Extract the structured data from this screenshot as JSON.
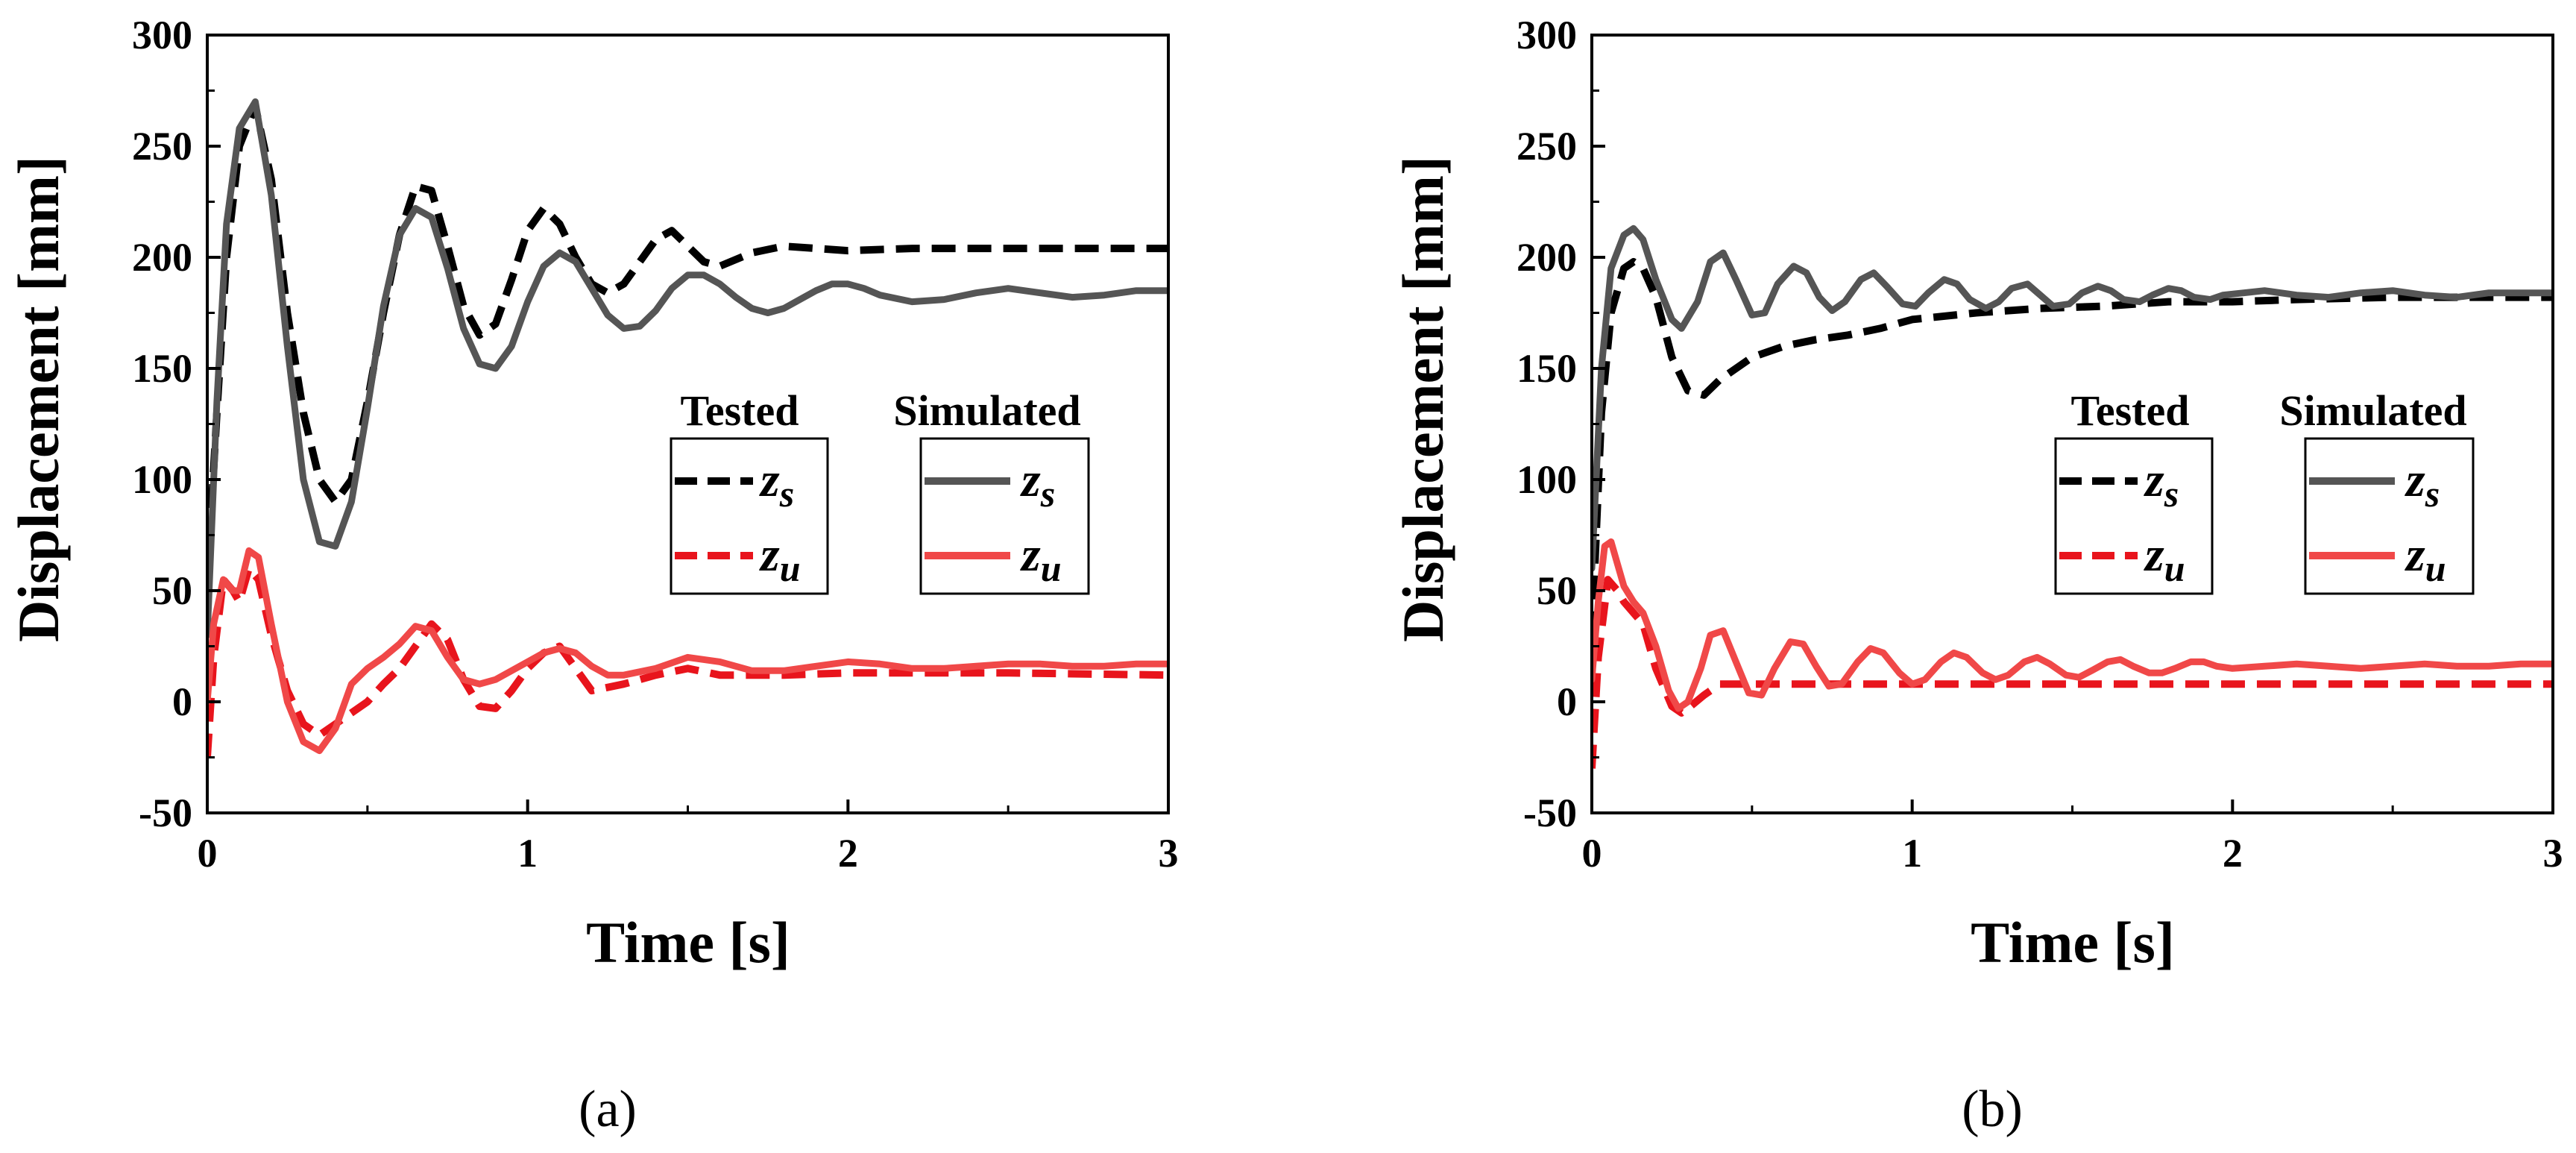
{
  "chart_data": [
    {
      "type": "line",
      "caption": "(a)",
      "xlabel": "Time [s]",
      "ylabel": "Displacement [mm]",
      "xlim": [
        0,
        3
      ],
      "ylim": [
        -50,
        300
      ],
      "xticks": [
        0,
        1,
        2,
        3
      ],
      "yticks": [
        -50,
        0,
        50,
        100,
        150,
        200,
        250,
        300
      ],
      "legend": {
        "placement": "center-right",
        "groups": [
          {
            "title": "Tested",
            "entries": [
              {
                "symbol": "z",
                "sub": "s"
              },
              {
                "symbol": "z",
                "sub": "u"
              }
            ]
          },
          {
            "title": "Simulated",
            "entries": [
              {
                "symbol": "z",
                "sub": "s"
              },
              {
                "symbol": "z",
                "sub": "u"
              }
            ]
          }
        ]
      },
      "series": [
        {
          "group": "Tested",
          "variable": "zs",
          "color": "#000000",
          "dash": true,
          "x": [
            0,
            0.03,
            0.06,
            0.1,
            0.15,
            0.2,
            0.25,
            0.3,
            0.35,
            0.4,
            0.45,
            0.5,
            0.55,
            0.6,
            0.65,
            0.7,
            0.75,
            0.8,
            0.85,
            0.9,
            0.95,
            1.0,
            1.05,
            1.1,
            1.15,
            1.2,
            1.25,
            1.3,
            1.35,
            1.4,
            1.45,
            1.5,
            1.55,
            1.6,
            1.7,
            1.8,
            1.9,
            2.0,
            2.2,
            2.5,
            2.8,
            3.0
          ],
          "y": [
            55,
            130,
            200,
            250,
            268,
            235,
            175,
            130,
            100,
            90,
            100,
            135,
            175,
            210,
            232,
            230,
            205,
            178,
            165,
            170,
            190,
            212,
            222,
            215,
            200,
            188,
            184,
            188,
            198,
            208,
            212,
            205,
            198,
            196,
            202,
            205,
            204,
            203,
            204,
            204,
            204,
            204
          ]
        },
        {
          "group": "Tested",
          "variable": "zu",
          "color": "#e8141c",
          "dash": true,
          "x": [
            0,
            0.02,
            0.05,
            0.08,
            0.1,
            0.13,
            0.16,
            0.2,
            0.25,
            0.3,
            0.35,
            0.4,
            0.45,
            0.5,
            0.55,
            0.6,
            0.65,
            0.7,
            0.75,
            0.8,
            0.85,
            0.9,
            0.95,
            1.0,
            1.05,
            1.1,
            1.15,
            1.2,
            1.3,
            1.4,
            1.5,
            1.6,
            1.8,
            2.0,
            2.5,
            3.0
          ],
          "y": [
            -25,
            20,
            55,
            50,
            45,
            60,
            55,
            30,
            5,
            -10,
            -15,
            -10,
            -5,
            0,
            8,
            15,
            25,
            35,
            28,
            10,
            -2,
            -3,
            5,
            15,
            22,
            25,
            15,
            5,
            8,
            12,
            15,
            12,
            12,
            13,
            13,
            12
          ]
        },
        {
          "group": "Simulated",
          "variable": "zs",
          "color": "#555555",
          "dash": false,
          "x": [
            0,
            0.03,
            0.06,
            0.1,
            0.15,
            0.2,
            0.25,
            0.3,
            0.35,
            0.4,
            0.45,
            0.5,
            0.55,
            0.6,
            0.65,
            0.7,
            0.75,
            0.8,
            0.85,
            0.9,
            0.95,
            1.0,
            1.05,
            1.1,
            1.15,
            1.2,
            1.25,
            1.3,
            1.35,
            1.4,
            1.45,
            1.5,
            1.55,
            1.6,
            1.65,
            1.7,
            1.75,
            1.8,
            1.85,
            1.9,
            1.95,
            2.0,
            2.05,
            2.1,
            2.2,
            2.3,
            2.4,
            2.5,
            2.6,
            2.7,
            2.8,
            2.9,
            3.0
          ],
          "y": [
            30,
            135,
            215,
            258,
            270,
            228,
            160,
            100,
            72,
            70,
            90,
            132,
            178,
            210,
            222,
            218,
            195,
            168,
            152,
            150,
            160,
            180,
            196,
            202,
            198,
            186,
            174,
            168,
            169,
            176,
            186,
            192,
            192,
            188,
            182,
            177,
            175,
            177,
            181,
            185,
            188,
            188,
            186,
            183,
            180,
            181,
            184,
            186,
            184,
            182,
            183,
            185,
            185
          ]
        },
        {
          "group": "Simulated",
          "variable": "zu",
          "color": "#f04848",
          "dash": false,
          "x": [
            0,
            0.02,
            0.05,
            0.08,
            0.1,
            0.13,
            0.16,
            0.2,
            0.25,
            0.3,
            0.35,
            0.4,
            0.45,
            0.5,
            0.55,
            0.6,
            0.65,
            0.7,
            0.75,
            0.8,
            0.85,
            0.9,
            0.95,
            1.0,
            1.05,
            1.1,
            1.15,
            1.2,
            1.25,
            1.3,
            1.4,
            1.5,
            1.6,
            1.7,
            1.8,
            1.9,
            2.0,
            2.1,
            2.2,
            2.3,
            2.4,
            2.5,
            2.6,
            2.7,
            2.8,
            2.9,
            3.0
          ],
          "y": [
            0,
            35,
            55,
            50,
            50,
            68,
            65,
            35,
            0,
            -18,
            -22,
            -12,
            8,
            15,
            20,
            26,
            34,
            32,
            20,
            10,
            8,
            10,
            14,
            18,
            22,
            24,
            22,
            16,
            12,
            12,
            15,
            20,
            18,
            14,
            14,
            16,
            18,
            17,
            15,
            15,
            16,
            17,
            17,
            16,
            16,
            17,
            17
          ]
        }
      ]
    },
    {
      "type": "line",
      "caption": "(b)",
      "xlabel": "Time [s]",
      "ylabel": "Displacement [mm]",
      "xlim": [
        0,
        3
      ],
      "ylim": [
        -50,
        300
      ],
      "xticks": [
        0,
        1,
        2,
        3
      ],
      "yticks": [
        -50,
        0,
        50,
        100,
        150,
        200,
        250,
        300
      ],
      "legend": {
        "placement": "center-right",
        "groups": [
          {
            "title": "Tested",
            "entries": [
              {
                "symbol": "z",
                "sub": "s"
              },
              {
                "symbol": "z",
                "sub": "u"
              }
            ]
          },
          {
            "title": "Simulated",
            "entries": [
              {
                "symbol": "z",
                "sub": "s"
              },
              {
                "symbol": "z",
                "sub": "u"
              }
            ]
          }
        ]
      },
      "series": [
        {
          "group": "Tested",
          "variable": "zs",
          "color": "#000000",
          "dash": true,
          "x": [
            0,
            0.03,
            0.06,
            0.1,
            0.13,
            0.16,
            0.2,
            0.25,
            0.3,
            0.35,
            0.4,
            0.5,
            0.6,
            0.7,
            0.8,
            0.9,
            1.0,
            1.2,
            1.4,
            1.6,
            1.8,
            2.0,
            2.2,
            2.5,
            2.8,
            3.0
          ],
          "y": [
            30,
            130,
            175,
            195,
            198,
            195,
            182,
            155,
            140,
            138,
            145,
            155,
            160,
            163,
            165,
            168,
            172,
            175,
            177,
            178,
            180,
            180,
            181,
            182,
            182,
            182
          ]
        },
        {
          "group": "Tested",
          "variable": "zu",
          "color": "#e8141c",
          "dash": true,
          "x": [
            0,
            0.02,
            0.05,
            0.08,
            0.1,
            0.13,
            0.16,
            0.2,
            0.25,
            0.28,
            0.3,
            0.35,
            0.4,
            0.5,
            0.6,
            0.8,
            1.0,
            1.2,
            1.5,
            2.0,
            2.5,
            3.0
          ],
          "y": [
            -30,
            20,
            55,
            50,
            45,
            40,
            35,
            15,
            -2,
            -5,
            -3,
            3,
            8,
            8,
            8,
            8,
            8,
            8,
            8,
            8,
            8,
            8
          ]
        },
        {
          "group": "Simulated",
          "variable": "zs",
          "color": "#555555",
          "dash": false,
          "x": [
            0,
            0.03,
            0.06,
            0.1,
            0.13,
            0.16,
            0.2,
            0.25,
            0.28,
            0.33,
            0.37,
            0.41,
            0.45,
            0.5,
            0.54,
            0.58,
            0.63,
            0.67,
            0.71,
            0.75,
            0.79,
            0.84,
            0.88,
            0.92,
            0.97,
            1.01,
            1.05,
            1.1,
            1.14,
            1.18,
            1.23,
            1.27,
            1.31,
            1.36,
            1.4,
            1.44,
            1.49,
            1.53,
            1.58,
            1.62,
            1.66,
            1.71,
            1.75,
            1.8,
            1.84,
            1.88,
            1.93,
            1.97,
            2.1,
            2.2,
            2.3,
            2.4,
            2.5,
            2.6,
            2.7,
            2.8,
            2.9,
            3.0
          ],
          "y": [
            60,
            150,
            195,
            210,
            213,
            208,
            190,
            172,
            168,
            180,
            198,
            202,
            190,
            174,
            175,
            188,
            196,
            193,
            182,
            176,
            180,
            190,
            193,
            187,
            179,
            178,
            184,
            190,
            188,
            181,
            177,
            180,
            186,
            188,
            183,
            178,
            179,
            184,
            187,
            185,
            181,
            180,
            183,
            186,
            185,
            182,
            181,
            183,
            185,
            183,
            182,
            184,
            185,
            183,
            182,
            184,
            184,
            184
          ]
        },
        {
          "group": "Simulated",
          "variable": "zu",
          "color": "#f04848",
          "dash": false,
          "x": [
            0,
            0.02,
            0.04,
            0.06,
            0.08,
            0.1,
            0.13,
            0.16,
            0.2,
            0.24,
            0.27,
            0.3,
            0.34,
            0.37,
            0.41,
            0.45,
            0.49,
            0.53,
            0.57,
            0.62,
            0.66,
            0.7,
            0.74,
            0.78,
            0.83,
            0.87,
            0.91,
            0.96,
            1.0,
            1.04,
            1.09,
            1.13,
            1.17,
            1.22,
            1.26,
            1.3,
            1.35,
            1.39,
            1.43,
            1.48,
            1.52,
            1.56,
            1.61,
            1.65,
            1.69,
            1.74,
            1.78,
            1.82,
            1.87,
            1.91,
            1.95,
            2.0,
            2.1,
            2.2,
            2.3,
            2.4,
            2.5,
            2.6,
            2.7,
            2.8,
            2.9,
            3.0
          ],
          "y": [
            10,
            45,
            70,
            72,
            62,
            52,
            45,
            40,
            25,
            5,
            -3,
            0,
            15,
            30,
            32,
            18,
            4,
            3,
            15,
            27,
            26,
            16,
            7,
            8,
            18,
            24,
            22,
            13,
            8,
            10,
            18,
            22,
            20,
            13,
            10,
            12,
            18,
            20,
            17,
            12,
            11,
            14,
            18,
            19,
            16,
            13,
            13,
            15,
            18,
            18,
            16,
            15,
            16,
            17,
            16,
            15,
            16,
            17,
            16,
            16,
            17,
            17
          ]
        }
      ]
    }
  ]
}
